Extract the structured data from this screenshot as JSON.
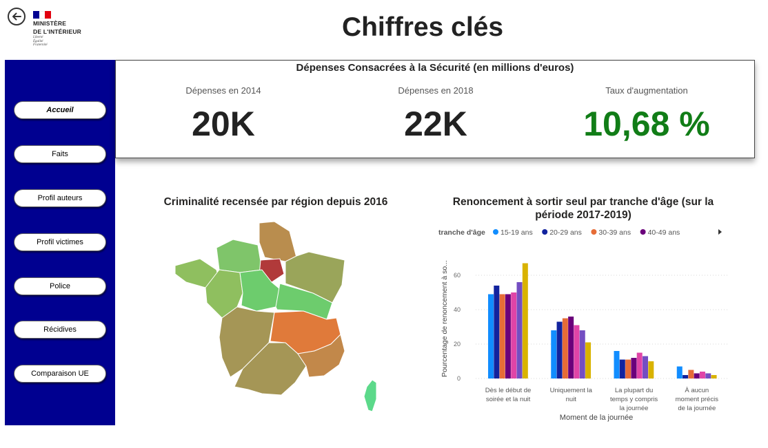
{
  "header": {
    "title": "Chiffres clés",
    "ministry_line1": "MINISTÈRE",
    "ministry_line2": "DE L'INTÉRIEUR",
    "motto": [
      "Liberté",
      "Égalité",
      "Fraternité"
    ]
  },
  "sidebar": {
    "items": [
      {
        "label": "Accueil",
        "active": true
      },
      {
        "label": "Faits"
      },
      {
        "label": "Profil auteurs"
      },
      {
        "label": "Profil victimes"
      },
      {
        "label": "Police"
      },
      {
        "label": "Récidives"
      },
      {
        "label": "Comparaison UE"
      }
    ]
  },
  "kpi_panel": {
    "title": "Dépenses Consacrées à la Sécurité (en millions d'euros)",
    "cards": [
      {
        "label": "Dépenses en 2014",
        "value": "20K"
      },
      {
        "label": "Dépenses en 2018",
        "value": "22K"
      },
      {
        "label": "Taux d'augmentation",
        "value": "10,68 %"
      }
    ]
  },
  "map": {
    "title": "Criminalité recensée par région depuis 2016"
  },
  "colors": {
    "sidebar": "#000090",
    "kpi_positive": "#117d17",
    "flag_blue": "#000091",
    "flag_red": "#e1000f"
  },
  "chart_data": {
    "type": "bar",
    "title": "Renoncement à sortir seul par tranche d'âge (sur la période 2017-2019)",
    "xlabel": "Moment de la journée",
    "ylabel": "Pourcentage de renoncement à so...",
    "legend_title": "tranche d'âge",
    "legend_placement": "top",
    "ylim": [
      0,
      70
    ],
    "yticks": [
      0,
      20,
      40,
      60
    ],
    "grid": true,
    "categories": [
      [
        "Dès le début de",
        "soirée et la nuit"
      ],
      [
        "Uniquement la",
        "nuit"
      ],
      [
        "La plupart du",
        "temps y compris",
        "la journée"
      ],
      [
        "À aucun",
        "moment précis",
        "de la journée"
      ]
    ],
    "series": [
      {
        "name": "15-19 ans",
        "color": "#118dff",
        "values": [
          49,
          28,
          16,
          7
        ]
      },
      {
        "name": "20-29 ans",
        "color": "#12239e",
        "values": [
          54,
          33,
          11,
          2
        ]
      },
      {
        "name": "30-39 ans",
        "color": "#e66c37",
        "values": [
          49,
          35,
          11,
          5
        ]
      },
      {
        "name": "40-49 ans",
        "color": "#6b007b",
        "values": [
          49,
          36,
          12,
          3
        ]
      },
      {
        "color": "#e044a7",
        "values": [
          50,
          31,
          15,
          4
        ]
      },
      {
        "color": "#744ec2",
        "values": [
          56,
          28,
          13,
          3
        ]
      },
      {
        "color": "#d9b300",
        "values": [
          67,
          21,
          10,
          2
        ]
      }
    ]
  }
}
